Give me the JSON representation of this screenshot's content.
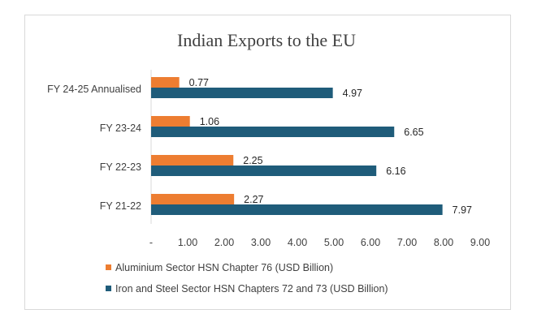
{
  "chart_data": {
    "type": "bar",
    "orientation": "horizontal",
    "title": "Indian Exports to the EU",
    "categories": [
      "FY 24-25 Annualised",
      "FY 23-24",
      "FY 22-23",
      "FY 21-22"
    ],
    "series": [
      {
        "name": "Aluminium Sector HSN Chapter 76 (USD Billion)",
        "color": "#ED7D31",
        "values": [
          0.77,
          1.06,
          2.25,
          2.27
        ],
        "labels": [
          "0.77",
          "1.06",
          "2.25",
          "2.27"
        ]
      },
      {
        "name": "Iron and Steel Sector HSN Chapters 72 and 73 (USD Billion)",
        "color": "#1F5C7A",
        "values": [
          4.97,
          6.65,
          6.16,
          7.97
        ],
        "labels": [
          "4.97",
          "6.65",
          "6.16",
          "7.97"
        ]
      }
    ],
    "xlim": [
      0,
      9
    ],
    "xticks": [
      0,
      1,
      2,
      3,
      4,
      5,
      6,
      7,
      8,
      9
    ],
    "xtick_labels": [
      "-",
      "1.00",
      "2.00",
      "3.00",
      "4.00",
      "5.00",
      "6.00",
      "7.00",
      "8.00",
      "9.00"
    ],
    "grid": false,
    "legend_position": "bottom"
  }
}
